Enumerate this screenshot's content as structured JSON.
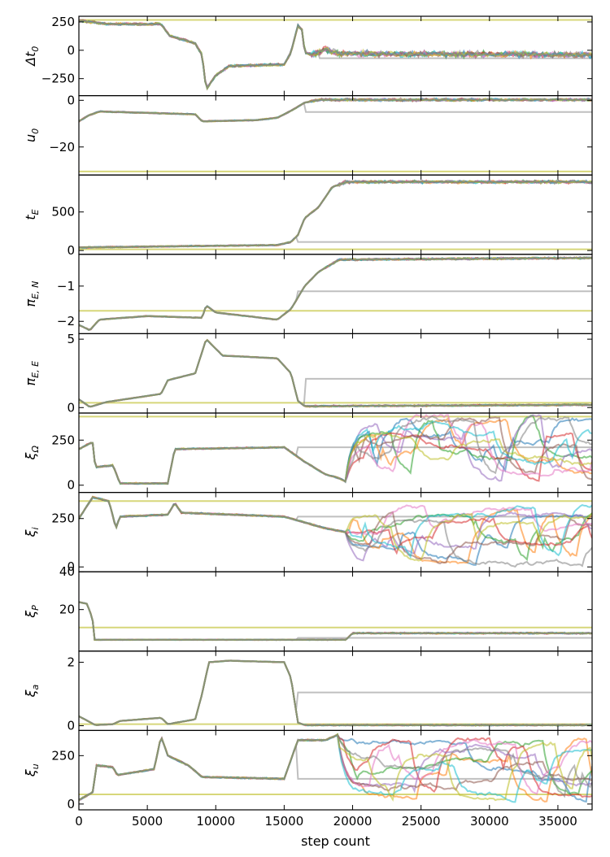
{
  "chart_data": {
    "type": "line",
    "title": "",
    "xlabel": "step count",
    "xlim": [
      0,
      37500
    ],
    "xticks": [
      0,
      5000,
      10000,
      15000,
      20000,
      25000,
      30000,
      35000
    ],
    "xtick_labels": [
      "0",
      "5000",
      "10000",
      "15000",
      "20000",
      "25000",
      "30000",
      "35000"
    ],
    "series_colors": [
      "#1f77b4",
      "#ff7f0e",
      "#2ca02c",
      "#d62728",
      "#9467bd",
      "#8c564b",
      "#e377c2",
      "#17becf",
      "#bcbd22",
      "#7f7f7f"
    ],
    "panels": [
      {
        "name": "dt0",
        "ylabel_main": "Δt",
        "ylabel_sub": "0",
        "ylim": [
          -400,
          300
        ],
        "yticks": [
          -250,
          0,
          250
        ],
        "ytick_labels": [
          "−250",
          "0",
          "250"
        ],
        "reference_lines": [
          {
            "value": 268,
            "color": "#bcbd22"
          }
        ],
        "stuck_walker": {
          "value": -70,
          "from": 17500
        },
        "consensus": [
          [
            0,
            262
          ],
          [
            1200,
            245
          ],
          [
            2000,
            232
          ],
          [
            5000,
            230
          ],
          [
            6000,
            232
          ],
          [
            6600,
            130
          ],
          [
            8000,
            80
          ],
          [
            8500,
            60
          ],
          [
            9000,
            -40
          ],
          [
            9300,
            -340
          ],
          [
            9500,
            -310
          ],
          [
            10000,
            -220
          ],
          [
            11000,
            -140
          ],
          [
            15000,
            -125
          ],
          [
            15500,
            -20
          ],
          [
            16000,
            220
          ],
          [
            16300,
            180
          ],
          [
            16500,
            -20
          ],
          [
            17000,
            -40
          ],
          [
            18000,
            10
          ],
          [
            19000,
            -30
          ],
          [
            37500,
            -40
          ]
        ],
        "converge_at": 17000,
        "spread": 14
      },
      {
        "name": "u0",
        "ylabel_main": "u",
        "ylabel_sub": "0",
        "ylim": [
          -32,
          2
        ],
        "yticks": [
          -20,
          0
        ],
        "ytick_labels": [
          "−20",
          "0"
        ],
        "reference_lines": [
          {
            "value": -30.5,
            "color": "#bcbd22"
          }
        ],
        "stuck_walker": {
          "value": -5,
          "from": 16500
        },
        "consensus": [
          [
            0,
            -9
          ],
          [
            700,
            -6.5
          ],
          [
            1500,
            -4.8
          ],
          [
            8500,
            -6
          ],
          [
            9000,
            -9
          ],
          [
            13000,
            -8.5
          ],
          [
            14500,
            -7.5
          ],
          [
            15500,
            -4.5
          ],
          [
            16500,
            -1
          ],
          [
            17500,
            0.2
          ],
          [
            37500,
            0.2
          ]
        ],
        "converge_at": 17000,
        "spread": 0.3
      },
      {
        "name": "tE",
        "ylabel_main": "t",
        "ylabel_sub": "E",
        "ylim": [
          -50,
          980
        ],
        "yticks": [
          0,
          500
        ],
        "ytick_labels": [
          "0",
          "500"
        ],
        "reference_lines": [
          {
            "value": 15,
            "color": "#bcbd22"
          }
        ],
        "stuck_walker": {
          "value": 110,
          "from": 16000
        },
        "consensus": [
          [
            0,
            40
          ],
          [
            14500,
            70
          ],
          [
            15500,
            110
          ],
          [
            16000,
            200
          ],
          [
            16500,
            420
          ],
          [
            17500,
            560
          ],
          [
            18500,
            820
          ],
          [
            19500,
            890
          ],
          [
            37500,
            890
          ]
        ],
        "converge_at": 19000,
        "spread": 10
      },
      {
        "name": "piEN",
        "ylabel_main": "π",
        "ylabel_sub": "E, N",
        "ylim": [
          -2.35,
          -0.1
        ],
        "yticks": [
          -2,
          -1
        ],
        "ytick_labels": [
          "−2",
          "−1"
        ],
        "reference_lines": [
          {
            "value": -1.7,
            "color": "#bcbd22"
          }
        ],
        "stuck_walker": {
          "value": -1.15,
          "from": 16000
        },
        "consensus": [
          [
            0,
            -2.1
          ],
          [
            800,
            -2.25
          ],
          [
            1500,
            -1.95
          ],
          [
            5000,
            -1.85
          ],
          [
            9000,
            -1.9
          ],
          [
            9300,
            -1.55
          ],
          [
            10000,
            -1.75
          ],
          [
            14500,
            -1.95
          ],
          [
            15500,
            -1.65
          ],
          [
            16500,
            -1.0
          ],
          [
            17500,
            -0.6
          ],
          [
            19000,
            -0.25
          ],
          [
            37500,
            -0.2
          ]
        ],
        "converge_at": 18000,
        "spread": 0.015
      },
      {
        "name": "piEE",
        "ylabel_main": "π",
        "ylabel_sub": "E, E",
        "ylim": [
          -0.4,
          5.4
        ],
        "yticks": [
          0,
          5
        ],
        "ytick_labels": [
          "0",
          "5"
        ],
        "reference_lines": [
          {
            "value": 0.35,
            "color": "#bcbd22"
          }
        ],
        "stuck_walker": {
          "value": 2.1,
          "from": 16500
        },
        "consensus": [
          [
            0,
            0.6
          ],
          [
            800,
            0.05
          ],
          [
            2000,
            0.4
          ],
          [
            6000,
            1.0
          ],
          [
            6500,
            2.0
          ],
          [
            8500,
            2.5
          ],
          [
            9300,
            5.0
          ],
          [
            10000,
            4.3
          ],
          [
            10500,
            3.8
          ],
          [
            14500,
            3.6
          ],
          [
            15500,
            2.5
          ],
          [
            16000,
            0.5
          ],
          [
            16500,
            0.1
          ],
          [
            37500,
            0.2
          ]
        ],
        "converge_at": 16500,
        "spread": 0.03
      },
      {
        "name": "xiOmega",
        "ylabel_main": "ξ",
        "ylabel_sub": "Ω",
        "ylim": [
          -40,
          400
        ],
        "yticks": [
          0,
          250
        ],
        "ytick_labels": [
          "0",
          "250"
        ],
        "reference_lines": [
          {
            "value": 380,
            "color": "#bcbd22"
          }
        ],
        "stuck_walker": {
          "value": 210,
          "from": 16000
        },
        "consensus": [
          [
            0,
            200
          ],
          [
            1000,
            240
          ],
          [
            1200,
            100
          ],
          [
            2500,
            110
          ],
          [
            3000,
            10
          ],
          [
            6500,
            10
          ],
          [
            7000,
            200
          ],
          [
            15000,
            210
          ],
          [
            16500,
            130
          ],
          [
            18000,
            60
          ],
          [
            19000,
            40
          ],
          [
            19500,
            20
          ]
        ],
        "diverge_at": 19500,
        "walker_range": [
          10,
          390
        ],
        "spread": 5
      },
      {
        "name": "xii",
        "ylabel_main": "ξ",
        "ylabel_sub": "i",
        "ylim": [
          -25,
          385
        ],
        "yticks": [
          0,
          250
        ],
        "ytick_labels": [
          "0",
          "250"
        ],
        "reference_lines": [
          {
            "value": 340,
            "color": "#bcbd22"
          }
        ],
        "stuck_walker": {
          "value": 260,
          "from": 16000
        },
        "consensus": [
          [
            0,
            250
          ],
          [
            1000,
            360
          ],
          [
            2200,
            340
          ],
          [
            2700,
            200
          ],
          [
            3000,
            260
          ],
          [
            6500,
            270
          ],
          [
            7000,
            330
          ],
          [
            7500,
            280
          ],
          [
            15000,
            260
          ],
          [
            18000,
            200
          ],
          [
            19500,
            180
          ]
        ],
        "diverge_at": 19500,
        "walker_range": [
          0,
          320
        ],
        "spread": 5
      },
      {
        "name": "xiP",
        "ylabel_main": "ξ",
        "ylabel_sub": "P",
        "ylim": [
          -2,
          40
        ],
        "yticks": [
          20,
          40
        ],
        "ytick_labels": [
          "20",
          "40"
        ],
        "reference_lines": [
          {
            "value": 10.5,
            "color": "#bcbd22"
          }
        ],
        "stuck_walker": {
          "value": 5,
          "from": 16000
        },
        "consensus": [
          [
            0,
            24
          ],
          [
            600,
            23
          ],
          [
            1000,
            15
          ],
          [
            1100,
            4
          ],
          [
            19500,
            4
          ],
          [
            20000,
            7.5
          ],
          [
            37500,
            7.5
          ]
        ],
        "converge_at": 20000,
        "spread": 0.2
      },
      {
        "name": "xia",
        "ylabel_main": "ξ",
        "ylabel_sub": "a",
        "ylim": [
          -0.15,
          2.35
        ],
        "yticks": [
          0,
          2
        ],
        "ytick_labels": [
          "0",
          "2"
        ],
        "reference_lines": [
          {
            "value": 0.05,
            "color": "#bcbd22"
          }
        ],
        "stuck_walker": {
          "value": 1.05,
          "from": 16000
        },
        "consensus": [
          [
            0,
            0.3
          ],
          [
            1200,
            0.02
          ],
          [
            2500,
            0.05
          ],
          [
            3000,
            0.15
          ],
          [
            6000,
            0.25
          ],
          [
            6500,
            0.05
          ],
          [
            8500,
            0.2
          ],
          [
            9000,
            1.0
          ],
          [
            9500,
            2.0
          ],
          [
            11000,
            2.05
          ],
          [
            15000,
            2.0
          ],
          [
            15500,
            1.5
          ],
          [
            16000,
            0.1
          ],
          [
            16500,
            0.02
          ],
          [
            37500,
            0.02
          ]
        ],
        "converge_at": 16500,
        "spread": 0.01
      },
      {
        "name": "xiu",
        "ylabel_main": "ξ",
        "ylabel_sub": "u",
        "ylim": [
          -30,
          380
        ],
        "yticks": [
          0,
          250
        ],
        "ytick_labels": [
          "0",
          "250"
        ],
        "reference_lines": [
          {
            "value": 50,
            "color": "#bcbd22"
          }
        ],
        "stuck_walker": {
          "value": 130,
          "from": 16000
        },
        "consensus": [
          [
            0,
            20
          ],
          [
            1000,
            60
          ],
          [
            1300,
            200
          ],
          [
            2500,
            190
          ],
          [
            2800,
            150
          ],
          [
            5500,
            180
          ],
          [
            6000,
            350
          ],
          [
            6500,
            250
          ],
          [
            8000,
            200
          ],
          [
            9000,
            140
          ],
          [
            15000,
            130
          ],
          [
            16000,
            330
          ],
          [
            18000,
            330
          ],
          [
            19000,
            360
          ]
        ],
        "diverge_at": 19000,
        "walker_range": [
          0,
          340
        ],
        "spread": 5
      }
    ]
  }
}
